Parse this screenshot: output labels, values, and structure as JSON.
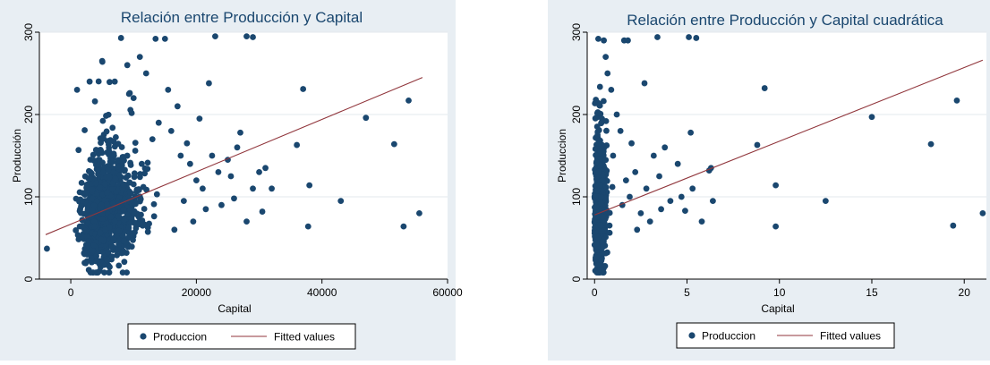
{
  "chart_data": [
    {
      "type": "scatter",
      "title": "Relación entre Producción y Capital",
      "xlabel": "Capital",
      "ylabel": "Producción",
      "xlim": [
        -5000,
        60000
      ],
      "ylim": [
        0,
        300
      ],
      "x_ticks": [
        "0",
        "20000",
        "40000",
        "60000"
      ],
      "y_ticks": [
        "0",
        "100",
        "200",
        "300"
      ],
      "grid": true,
      "legend_position": "bottom",
      "legend": [
        "Produccion",
        "Fitted values"
      ],
      "colors": {
        "points": "#1a476f",
        "fit": "#90353b",
        "plot_bg": "#ffffff",
        "panel_bg": "#e8eef3",
        "grid": "#e3e8ec"
      },
      "fit_line": {
        "x": [
          -4000,
          56000
        ],
        "y": [
          54,
          245
        ]
      },
      "series": [
        {
          "name": "Produccion",
          "cluster": {
            "x_center": 4000,
            "x_spread": 3000,
            "y_center": 75,
            "y_spread": 28,
            "count": 1200
          },
          "points": [
            [
              -3800,
              37
            ],
            [
              13500,
              292
            ],
            [
              15000,
              292
            ],
            [
              23000,
              295
            ],
            [
              28000,
              295
            ],
            [
              29000,
              294
            ],
            [
              8000,
              293
            ],
            [
              37000,
              231
            ],
            [
              47000,
              196
            ],
            [
              53800,
              217
            ],
            [
              36000,
              163
            ],
            [
              51500,
              164
            ],
            [
              38000,
              114
            ],
            [
              43000,
              95
            ],
            [
              53000,
              64
            ],
            [
              55500,
              80
            ],
            [
              37800,
              64
            ],
            [
              29000,
              110
            ],
            [
              30000,
              130
            ],
            [
              27000,
              178
            ],
            [
              22000,
              238
            ],
            [
              25000,
              145
            ],
            [
              20000,
              120
            ],
            [
              18500,
              165
            ],
            [
              21000,
              110
            ],
            [
              24000,
              90
            ],
            [
              26000,
              98
            ],
            [
              28000,
              70
            ],
            [
              30500,
              82
            ],
            [
              32000,
              110
            ],
            [
              18000,
              95
            ],
            [
              19500,
              70
            ],
            [
              16500,
              60
            ],
            [
              22500,
              150
            ],
            [
              17000,
              210
            ],
            [
              15500,
              230
            ],
            [
              12000,
              250
            ],
            [
              11000,
              270
            ],
            [
              9000,
              260
            ],
            [
              7000,
              240
            ],
            [
              5000,
              265
            ],
            [
              3000,
              240
            ],
            [
              1000,
              230
            ],
            [
              10000,
              220
            ],
            [
              14000,
              190
            ],
            [
              16000,
              180
            ],
            [
              20500,
              195
            ],
            [
              19000,
              140
            ],
            [
              26500,
              160
            ],
            [
              21500,
              85
            ],
            [
              23500,
              130
            ],
            [
              25500,
              125
            ],
            [
              17500,
              150
            ],
            [
              13000,
              170
            ],
            [
              31000,
              135
            ]
          ]
        }
      ]
    },
    {
      "type": "scatter",
      "title": "Relación entre Producción y Capital cuadrática",
      "xlabel": "Capital",
      "ylabel": "Produccion",
      "xlim": [
        -0.4,
        21.2
      ],
      "ylim": [
        0,
        300
      ],
      "x_ticks": [
        "0",
        "5",
        "10",
        "15",
        "20"
      ],
      "y_ticks": [
        "0",
        "100",
        "200",
        "300"
      ],
      "grid": true,
      "legend_position": "bottom",
      "legend": [
        "Produccion",
        "Fitted values"
      ],
      "colors": {
        "points": "#1a476f",
        "fit": "#90353b",
        "plot_bg": "#ffffff",
        "panel_bg": "#e8eef3",
        "grid": "#e3e8ec"
      },
      "fit_line": {
        "x": [
          0,
          21
        ],
        "y": [
          78,
          266
        ]
      },
      "series": [
        {
          "name": "Produccion",
          "cluster": {
            "x_center": 0.15,
            "x_spread": 0.2,
            "y_center": 78,
            "y_spread": 30,
            "count": 1100
          },
          "points": [
            [
              0.2,
              292
            ],
            [
              0.5,
              290
            ],
            [
              1.6,
              290
            ],
            [
              1.8,
              290
            ],
            [
              3.4,
              294
            ],
            [
              5.1,
              294
            ],
            [
              5.5,
              293
            ],
            [
              2.7,
              238
            ],
            [
              9.2,
              232
            ],
            [
              15,
              197
            ],
            [
              19.6,
              217
            ],
            [
              8.8,
              163
            ],
            [
              18.2,
              164
            ],
            [
              9.8,
              114
            ],
            [
              12.5,
              95
            ],
            [
              19.4,
              65
            ],
            [
              21,
              80
            ],
            [
              9.8,
              64
            ],
            [
              4.9,
              83
            ],
            [
              5.3,
              110
            ],
            [
              6.2,
              132
            ],
            [
              6.3,
              135
            ],
            [
              4.5,
              140
            ],
            [
              5.2,
              178
            ],
            [
              3.8,
              160
            ],
            [
              3.5,
              125
            ],
            [
              2.8,
              110
            ],
            [
              2.2,
              130
            ],
            [
              1.9,
              100
            ],
            [
              1.5,
              90
            ],
            [
              2.5,
              80
            ],
            [
              3.0,
              70
            ],
            [
              5.8,
              70
            ],
            [
              6.4,
              95
            ],
            [
              3.2,
              150
            ],
            [
              2.0,
              165
            ],
            [
              1.2,
              200
            ],
            [
              0.9,
              230
            ],
            [
              0.7,
              250
            ],
            [
              0.6,
              270
            ],
            [
              1.4,
              180
            ],
            [
              1.0,
              150
            ],
            [
              1.7,
              120
            ],
            [
              2.3,
              60
            ],
            [
              4.1,
              95
            ],
            [
              4.7,
              100
            ],
            [
              3.6,
              85
            ]
          ]
        }
      ]
    }
  ]
}
